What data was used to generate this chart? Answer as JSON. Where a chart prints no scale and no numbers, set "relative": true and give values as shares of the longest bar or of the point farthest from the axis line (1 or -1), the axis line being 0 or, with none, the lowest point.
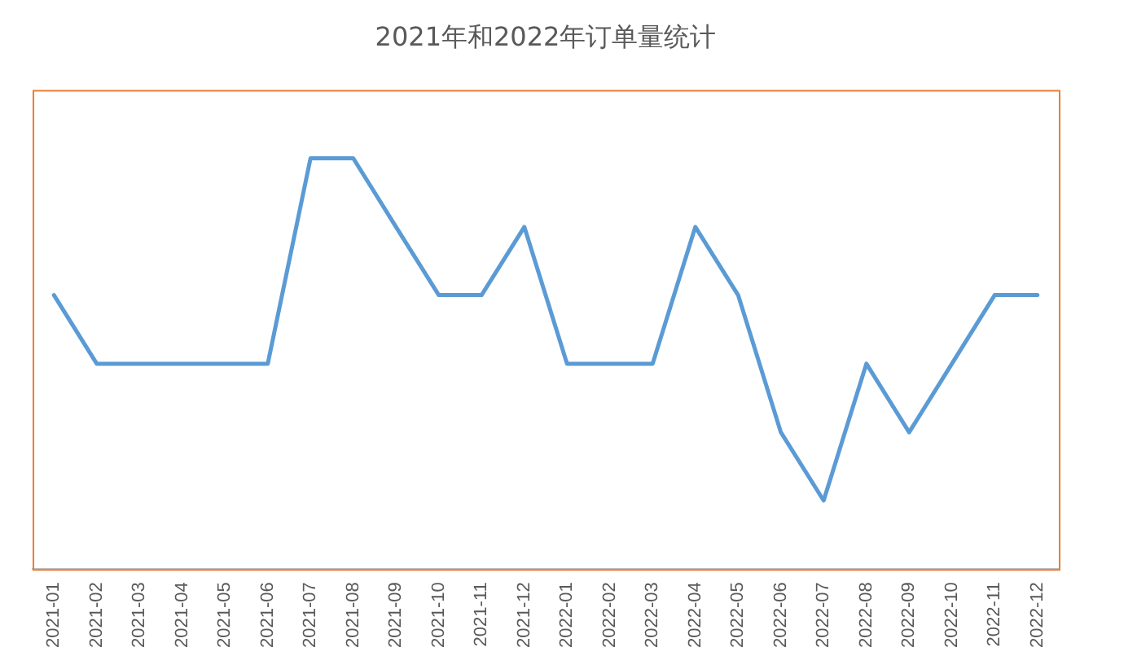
{
  "chart_data": {
    "type": "line",
    "title": "2021年和2022年订单量统计",
    "relative": true,
    "categories": [
      "2021-01",
      "2021-02",
      "2021-03",
      "2021-04",
      "2021-05",
      "2021-06",
      "2021-07",
      "2021-08",
      "2021-09",
      "2021-10",
      "2021-11",
      "2021-12",
      "2022-01",
      "2022-02",
      "2022-03",
      "2022-04",
      "2022-05",
      "2022-06",
      "2022-07",
      "2022-08",
      "2022-09",
      "2022-10",
      "2022-11",
      "2022-12"
    ],
    "series": [
      {
        "color": "#5b9bd5",
        "values": [
          0.667,
          0.5,
          0.5,
          0.5,
          0.5,
          0.5,
          1,
          1,
          0.833,
          0.667,
          0.667,
          0.833,
          0.5,
          0.5,
          0.5,
          0.833,
          0.667,
          0.333,
          0.167,
          0.5,
          0.333,
          0.5,
          0.667,
          0.667
        ]
      }
    ],
    "grid": false,
    "legend": false,
    "marker": "none",
    "line_style": "solid"
  }
}
